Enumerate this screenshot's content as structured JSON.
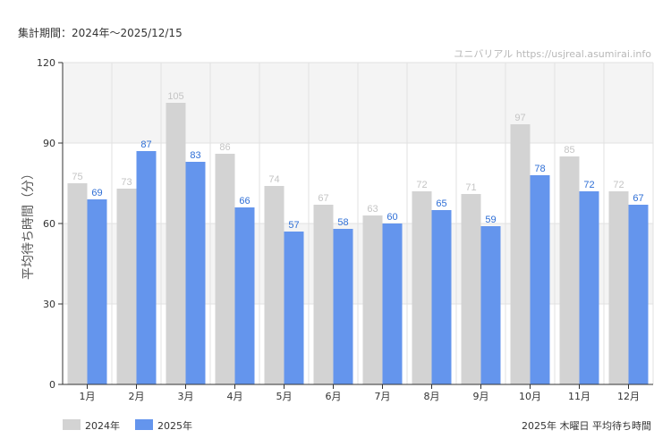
{
  "header": {
    "period": "集計期間：2024年～2025/12/15",
    "watermark": "ユニバリアル  https://usjreal.asumirai.info"
  },
  "footnote": "2025年 木曜日 平均待ち時間",
  "colors": {
    "series_2024": "#d3d3d3",
    "series_2025": "#6495ed",
    "label_2024": "#c4c4c4",
    "label_2025": "#2f6fd6",
    "band": "#f4f4f4",
    "grid": "#e2e2e2",
    "axis": "#333333"
  },
  "chart_data": {
    "type": "bar",
    "ylabel": "平均待ち時間（分）",
    "xlabel": "",
    "ylim": [
      0,
      120
    ],
    "yticks": [
      0,
      30,
      60,
      90,
      120
    ],
    "legend_position": "bottom-left",
    "categories": [
      "1月",
      "2月",
      "3月",
      "4月",
      "5月",
      "6月",
      "7月",
      "8月",
      "9月",
      "10月",
      "11月",
      "12月"
    ],
    "series": [
      {
        "name": "2024年",
        "values": [
          75,
          73,
          105,
          86,
          74,
          67,
          63,
          72,
          71,
          97,
          85,
          72
        ]
      },
      {
        "name": "2025年",
        "values": [
          69,
          87,
          83,
          66,
          57,
          58,
          60,
          65,
          59,
          78,
          72,
          67
        ]
      }
    ]
  }
}
